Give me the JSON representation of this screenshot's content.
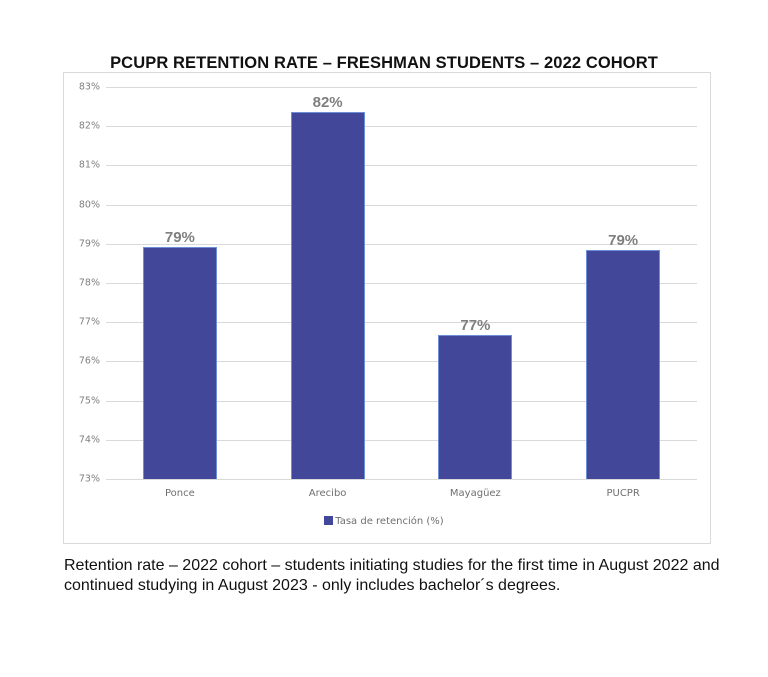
{
  "chart_data": {
    "type": "bar",
    "title": "PCUPR RETENTION RATE – FRESHMAN STUDENTS – 2022 COHORT",
    "categories": [
      "Ponce",
      "Arecibo",
      "Mayagüez",
      "PUCPR"
    ],
    "series": [
      {
        "name": "Tasa de retención (%)",
        "values": [
          78.93,
          82.36,
          76.67,
          78.83
        ],
        "color": "#43479a"
      }
    ],
    "data_labels": [
      "79%",
      "82%",
      "77%",
      "79%"
    ],
    "xlabel": "",
    "ylabel": "",
    "ylim": [
      73,
      83
    ],
    "yticks": [
      "83%",
      "82%",
      "81%",
      "80%",
      "79%",
      "78%",
      "77%",
      "76%",
      "75%",
      "74%",
      "73%"
    ],
    "grid": true,
    "legend_position": "bottom"
  },
  "caption": "Retention rate – 2022 cohort – students initiating studies for the first time in August 2022 and continued studying in August 2023 - only includes bachelor´s degrees."
}
